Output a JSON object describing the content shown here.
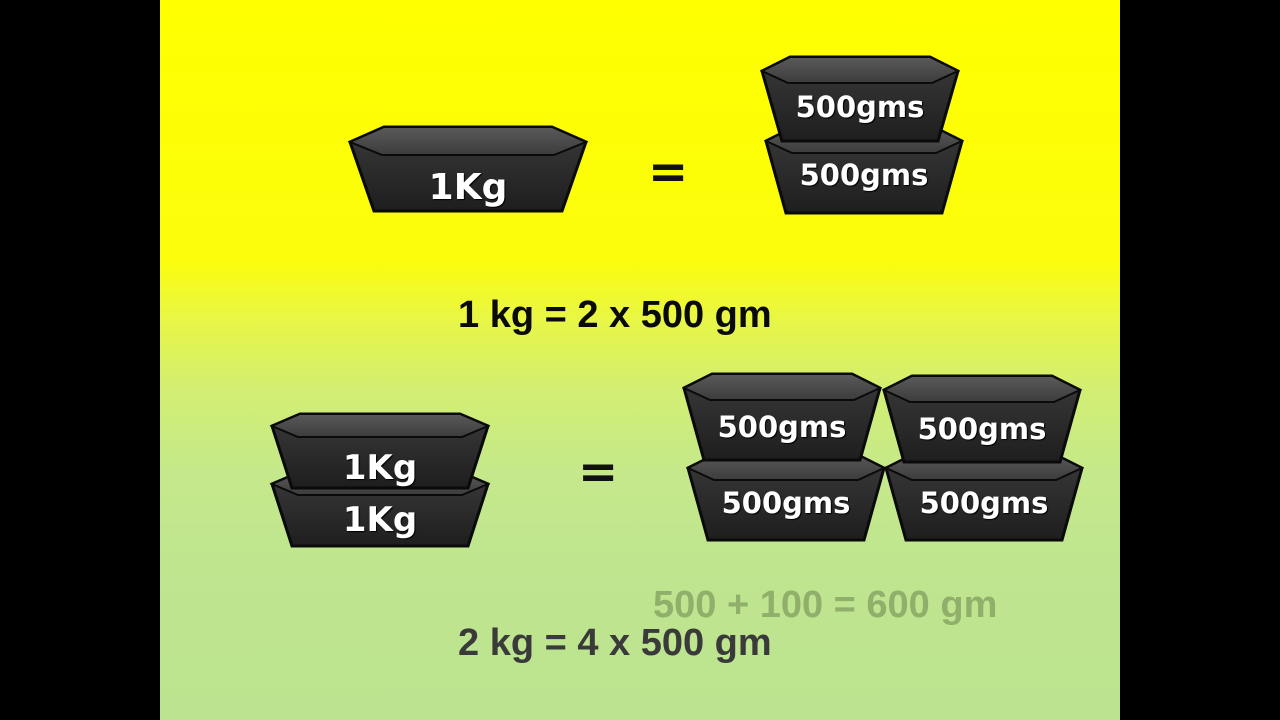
{
  "top_row": {
    "left_weights": [
      {
        "label": "1Kg"
      }
    ],
    "equals": "=",
    "right_weights": [
      {
        "label": "500gms"
      },
      {
        "label": "500gms"
      }
    ]
  },
  "equation_1": "1 kg = 2 x 500 gm",
  "bottom_row": {
    "left_weights": [
      {
        "label": "1Kg"
      },
      {
        "label": "1Kg"
      }
    ],
    "equals": "=",
    "right_weights": [
      {
        "label": "500gms"
      },
      {
        "label": "500gms"
      },
      {
        "label": "500gms"
      },
      {
        "label": "500gms"
      }
    ]
  },
  "equation_2": "2 kg = 4 x 500 gm",
  "equation_faded": "500 + 100 = 600 gm",
  "colors": {
    "background_top": "#ffff00",
    "background_bottom": "#bce38f",
    "weight_body": "#2a2a2a",
    "weight_label": "#ffffff"
  }
}
